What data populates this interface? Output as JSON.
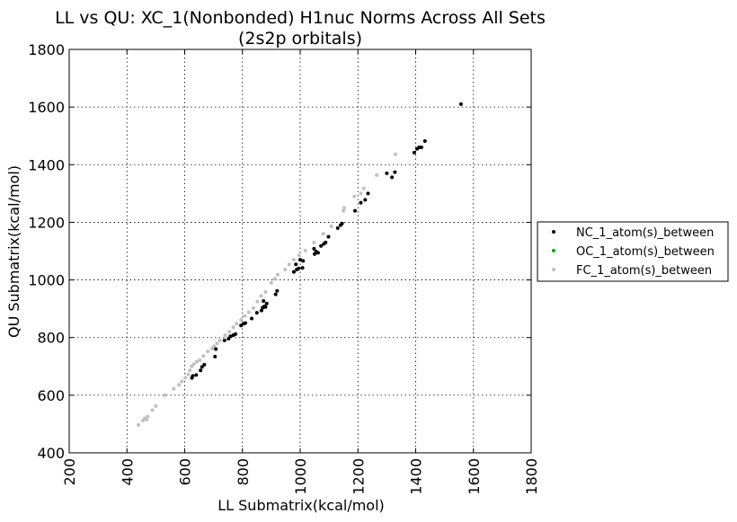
{
  "chart_data": {
    "type": "scatter",
    "title": "LL vs QU: XC_1(Nonbonded) H1nuc Norms Across All Sets",
    "subtitle": "(2s2p orbitals)",
    "xlabel": "LL Submatrix(kcal/mol)",
    "ylabel": "QU Submatrix(kcal/mol)",
    "xlim": [
      200,
      1800
    ],
    "ylim": [
      400,
      1800
    ],
    "xticks": [
      "200",
      "400",
      "600",
      "800",
      "1000",
      "1200",
      "1400",
      "1600",
      "1800"
    ],
    "yticks": [
      "400",
      "600",
      "800",
      "1000",
      "1200",
      "1400",
      "1600",
      "1800"
    ],
    "grid": true,
    "legend_position": "right-outside",
    "series": [
      {
        "name": "NC_1_atom(s)_between",
        "color": "#000000",
        "points": [
          [
            625,
            660
          ],
          [
            628,
            667
          ],
          [
            640,
            670
          ],
          [
            655,
            686
          ],
          [
            660,
            698
          ],
          [
            668,
            706
          ],
          [
            705,
            734
          ],
          [
            708,
            760
          ],
          [
            738,
            790
          ],
          [
            752,
            796
          ],
          [
            758,
            804
          ],
          [
            768,
            808
          ],
          [
            776,
            812
          ],
          [
            795,
            842
          ],
          [
            803,
            848
          ],
          [
            810,
            850
          ],
          [
            832,
            866
          ],
          [
            850,
            886
          ],
          [
            866,
            894
          ],
          [
            870,
            904
          ],
          [
            876,
            908
          ],
          [
            880,
            906
          ],
          [
            873,
            927
          ],
          [
            884,
            918
          ],
          [
            915,
            950
          ],
          [
            920,
            962
          ],
          [
            978,
            1028
          ],
          [
            988,
            1036
          ],
          [
            995,
            1040
          ],
          [
            1008,
            1042
          ],
          [
            985,
            1054
          ],
          [
            1000,
            1070
          ],
          [
            1010,
            1066
          ],
          [
            1050,
            1090
          ],
          [
            1055,
            1098
          ],
          [
            1062,
            1094
          ],
          [
            1048,
            1108
          ],
          [
            1072,
            1118
          ],
          [
            1082,
            1125
          ],
          [
            1088,
            1130
          ],
          [
            1098,
            1150
          ],
          [
            1130,
            1180
          ],
          [
            1140,
            1190
          ],
          [
            1145,
            1196
          ],
          [
            1190,
            1240
          ],
          [
            1210,
            1268
          ],
          [
            1225,
            1278
          ],
          [
            1235,
            1300
          ],
          [
            1300,
            1370
          ],
          [
            1318,
            1356
          ],
          [
            1328,
            1374
          ],
          [
            1395,
            1442
          ],
          [
            1405,
            1455
          ],
          [
            1412,
            1460
          ],
          [
            1420,
            1460
          ],
          [
            1432,
            1482
          ],
          [
            1557,
            1610
          ]
        ]
      },
      {
        "name": "OC_1_atom(s)_between",
        "color": "#00aa00",
        "points": []
      },
      {
        "name": "FC_1_atom(s)_between",
        "color": "#c0c0c0",
        "points": [
          [
            440,
            497
          ],
          [
            455,
            512
          ],
          [
            462,
            520
          ],
          [
            468,
            515
          ],
          [
            472,
            526
          ],
          [
            488,
            548
          ],
          [
            500,
            562
          ],
          [
            530,
            600
          ],
          [
            562,
            622
          ],
          [
            580,
            636
          ],
          [
            590,
            648
          ],
          [
            602,
            660
          ],
          [
            612,
            672
          ],
          [
            618,
            686
          ],
          [
            624,
            700
          ],
          [
            632,
            708
          ],
          [
            642,
            716
          ],
          [
            652,
            722
          ],
          [
            665,
            736
          ],
          [
            680,
            752
          ],
          [
            695,
            762
          ],
          [
            702,
            770
          ],
          [
            712,
            780
          ],
          [
            722,
            790
          ],
          [
            740,
            808
          ],
          [
            755,
            820
          ],
          [
            768,
            836
          ],
          [
            780,
            848
          ],
          [
            795,
            862
          ],
          [
            808,
            875
          ],
          [
            822,
            888
          ],
          [
            838,
            902
          ],
          [
            852,
            925
          ],
          [
            865,
            945
          ],
          [
            880,
            958
          ],
          [
            900,
            990
          ],
          [
            912,
            1004
          ],
          [
            922,
            1018
          ],
          [
            948,
            1036
          ],
          [
            962,
            1054
          ],
          [
            978,
            1070
          ],
          [
            996,
            1085
          ],
          [
            1018,
            1102
          ],
          [
            1048,
            1130
          ],
          [
            1080,
            1160
          ],
          [
            1108,
            1186
          ],
          [
            1150,
            1240
          ],
          [
            1152,
            1250
          ],
          [
            1188,
            1290
          ],
          [
            1210,
            1300
          ],
          [
            1220,
            1318
          ],
          [
            1265,
            1364
          ],
          [
            1330,
            1436
          ]
        ]
      }
    ]
  }
}
